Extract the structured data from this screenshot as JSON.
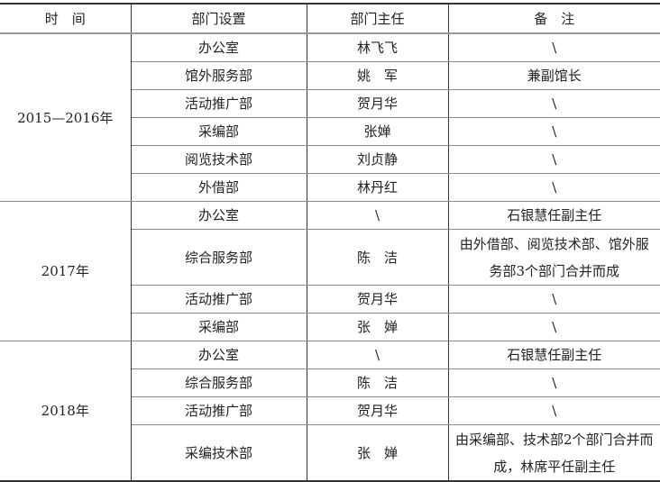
{
  "headers": [
    "时　间",
    "部门设置",
    "部门主任",
    "备　注"
  ],
  "groups": [
    {
      "period": "2015—2016年",
      "rows": [
        {
          "dept": "办公室",
          "head": "林飞飞",
          "note": "\\"
        },
        {
          "dept": "馆外服务部",
          "head": "姚　军",
          "note": "兼副馆长"
        },
        {
          "dept": "活动推广部",
          "head": "贺月华",
          "note": "\\"
        },
        {
          "dept": "采编部",
          "head": "张婵",
          "note": "\\"
        },
        {
          "dept": "阅览技术部",
          "head": "刘贞静",
          "note": "\\"
        },
        {
          "dept": "外借部",
          "head": "林丹红",
          "note": "\\"
        }
      ]
    },
    {
      "period": "2017年",
      "rows": [
        {
          "dept": "办公室",
          "head": "\\",
          "note": "石银慧任副主任"
        },
        {
          "dept": "综合服务部",
          "head": "陈　洁",
          "note": "由外借部、阅览技术部、馆外服务部3个部门合并而成"
        },
        {
          "dept": "活动推广部",
          "head": "贺月华",
          "note": "\\"
        },
        {
          "dept": "采编部",
          "head": "张　婵",
          "note": "\\"
        }
      ]
    },
    {
      "period": "2018年",
      "rows": [
        {
          "dept": "办公室",
          "head": "\\",
          "note": "石银慧任副主任"
        },
        {
          "dept": "综合服务部",
          "head": "陈　洁",
          "note": "\\"
        },
        {
          "dept": "活动推广部",
          "head": "贺月华",
          "note": "\\"
        },
        {
          "dept": "采编技术部",
          "head": "张　婵",
          "note": "由采编部、技术部2个部门合并而成，林席平任副主任"
        }
      ]
    }
  ]
}
